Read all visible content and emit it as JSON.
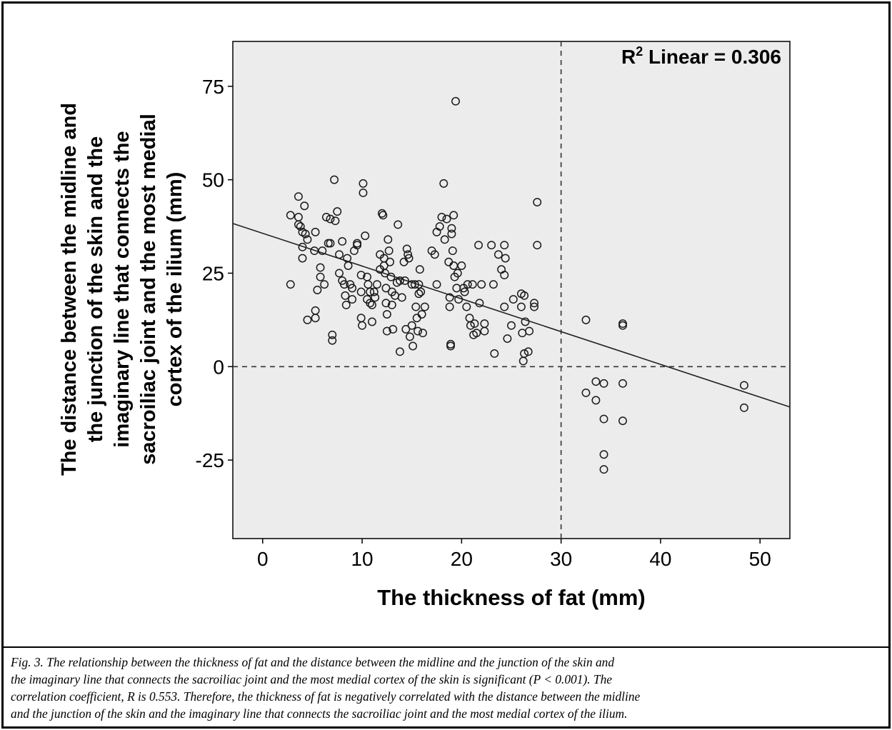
{
  "chart_data": {
    "type": "scatter",
    "xlabel": "The thickness of fat (mm)",
    "ylabel": "The distance between the midline and the junction of the skin and the imaginary line that connects the sacroiliac joint and the most medial cortex of the ilium (mm)",
    "ylabel_lines": [
      "The distance between the midline and",
      "the junction of the skin and the",
      "imaginary line that connects the",
      "sacroiliac joint and the most medial",
      "cortex of the ilium (mm)"
    ],
    "xlim": [
      -3,
      53
    ],
    "ylim": [
      -46,
      87
    ],
    "xticks": [
      0,
      10,
      20,
      30,
      40,
      50
    ],
    "yticks": [
      75,
      50,
      25,
      0,
      -25
    ],
    "annotation": {
      "prefix": "R",
      "sup": "2",
      "suffix": " Linear = 0.306"
    },
    "fit_line": {
      "x": [
        -3,
        53
      ],
      "y": [
        38.3,
        -10.8
      ]
    },
    "reference_lines": {
      "x": 30,
      "y": 0
    },
    "background": "#ececec",
    "points": [
      [
        2.8,
        40.5
      ],
      [
        2.8,
        22
      ],
      [
        3.6,
        45.5
      ],
      [
        3.6,
        38
      ],
      [
        3.8,
        37.5
      ],
      [
        3.6,
        40
      ],
      [
        4,
        36
      ],
      [
        4.2,
        43
      ],
      [
        4,
        32
      ],
      [
        4,
        29
      ],
      [
        4.3,
        35.5
      ],
      [
        4.5,
        34
      ],
      [
        4.5,
        12.5
      ],
      [
        5.2,
        31
      ],
      [
        5.3,
        36
      ],
      [
        5.3,
        15
      ],
      [
        5.3,
        13
      ],
      [
        5.5,
        20.5
      ],
      [
        5.8,
        26.5
      ],
      [
        5.8,
        24
      ],
      [
        6,
        31
      ],
      [
        6.2,
        22
      ],
      [
        6.4,
        40
      ],
      [
        6.6,
        33
      ],
      [
        6.8,
        39.5
      ],
      [
        6.8,
        33
      ],
      [
        7,
        8.5
      ],
      [
        7,
        7
      ],
      [
        7.2,
        50
      ],
      [
        7.3,
        39
      ],
      [
        7.5,
        41.5
      ],
      [
        7.7,
        30
      ],
      [
        7.7,
        25
      ],
      [
        8,
        33.5
      ],
      [
        8,
        23
      ],
      [
        8.2,
        22
      ],
      [
        8.3,
        19
      ],
      [
        8.4,
        16.5
      ],
      [
        8.5,
        29
      ],
      [
        8.6,
        27
      ],
      [
        8.8,
        22
      ],
      [
        9,
        21
      ],
      [
        9,
        18
      ],
      [
        9.2,
        31
      ],
      [
        9.5,
        33
      ],
      [
        9.5,
        32.5
      ],
      [
        9.9,
        24.5
      ],
      [
        9.9,
        20
      ],
      [
        9.9,
        13
      ],
      [
        10,
        11
      ],
      [
        10.1,
        49
      ],
      [
        10.1,
        46.5
      ],
      [
        10.3,
        35
      ],
      [
        10.5,
        24
      ],
      [
        10.5,
        18
      ],
      [
        10.6,
        22
      ],
      [
        10.8,
        20
      ],
      [
        10.8,
        17
      ],
      [
        11,
        16.5
      ],
      [
        11,
        12
      ],
      [
        11.2,
        20
      ],
      [
        11.3,
        18.5
      ],
      [
        11.5,
        22
      ],
      [
        11.8,
        30
      ],
      [
        11.8,
        26
      ],
      [
        12,
        41
      ],
      [
        12.1,
        40.5
      ],
      [
        12.2,
        29
      ],
      [
        12.2,
        27
      ],
      [
        12.3,
        25
      ],
      [
        12.4,
        21
      ],
      [
        12.4,
        17
      ],
      [
        12.5,
        14
      ],
      [
        12.5,
        9.5
      ],
      [
        12.6,
        34
      ],
      [
        12.7,
        31
      ],
      [
        12.8,
        28
      ],
      [
        12.9,
        24
      ],
      [
        13,
        20
      ],
      [
        13,
        16.5
      ],
      [
        13.1,
        10
      ],
      [
        13.3,
        19
      ],
      [
        13.5,
        22.5
      ],
      [
        13.6,
        38
      ],
      [
        13.8,
        23
      ],
      [
        13.8,
        4
      ],
      [
        14,
        18.5
      ],
      [
        14.2,
        28
      ],
      [
        14.3,
        23
      ],
      [
        14.4,
        10
      ],
      [
        14.5,
        31.5
      ],
      [
        14.6,
        30
      ],
      [
        14.7,
        29
      ],
      [
        14.8,
        8
      ],
      [
        15,
        22
      ],
      [
        15,
        11
      ],
      [
        15.1,
        5.5
      ],
      [
        15.3,
        22
      ],
      [
        15.4,
        16
      ],
      [
        15.5,
        13
      ],
      [
        15.6,
        9.5
      ],
      [
        15.7,
        22
      ],
      [
        15.7,
        19.5
      ],
      [
        15.8,
        26
      ],
      [
        15.9,
        20
      ],
      [
        16,
        14
      ],
      [
        16.1,
        9
      ],
      [
        16.3,
        16
      ],
      [
        17,
        31
      ],
      [
        17.3,
        30
      ],
      [
        17.5,
        36
      ],
      [
        17.5,
        22
      ],
      [
        17.8,
        37.5
      ],
      [
        18,
        40
      ],
      [
        18.2,
        49
      ],
      [
        18.3,
        34
      ],
      [
        18.5,
        39.5
      ],
      [
        18.7,
        28
      ],
      [
        18.8,
        18.5
      ],
      [
        18.8,
        16
      ],
      [
        18.9,
        6
      ],
      [
        18.9,
        5.5
      ],
      [
        19,
        37
      ],
      [
        19,
        35.5
      ],
      [
        19.1,
        31
      ],
      [
        19.2,
        40.5
      ],
      [
        19.2,
        27
      ],
      [
        19.3,
        24
      ],
      [
        19.4,
        71
      ],
      [
        19.5,
        21
      ],
      [
        19.6,
        25
      ],
      [
        19.7,
        18
      ],
      [
        20,
        27
      ],
      [
        20.2,
        21
      ],
      [
        20.3,
        20
      ],
      [
        20.5,
        16
      ],
      [
        20.6,
        22
      ],
      [
        20.8,
        13
      ],
      [
        20.9,
        11
      ],
      [
        21.1,
        22
      ],
      [
        21.2,
        8.5
      ],
      [
        21.3,
        11.5
      ],
      [
        21.5,
        9
      ],
      [
        21.7,
        32.5
      ],
      [
        21.8,
        17
      ],
      [
        22,
        22
      ],
      [
        22.3,
        11.5
      ],
      [
        22.3,
        9.5
      ],
      [
        23,
        32.5
      ],
      [
        23.2,
        22
      ],
      [
        23.3,
        3.5
      ],
      [
        23.7,
        30
      ],
      [
        24,
        26
      ],
      [
        24.3,
        32.5
      ],
      [
        24.3,
        24.5
      ],
      [
        24.3,
        16
      ],
      [
        24.4,
        29
      ],
      [
        24.6,
        7.5
      ],
      [
        25,
        11
      ],
      [
        25.2,
        18
      ],
      [
        26,
        19.5
      ],
      [
        26,
        16
      ],
      [
        26.1,
        9
      ],
      [
        26.2,
        1.5
      ],
      [
        26.3,
        3.5
      ],
      [
        26.4,
        12
      ],
      [
        26.7,
        4
      ],
      [
        26.8,
        9.5
      ],
      [
        26.3,
        19
      ],
      [
        27.3,
        17
      ],
      [
        27.3,
        16
      ],
      [
        27.6,
        44
      ],
      [
        27.6,
        32.5
      ],
      [
        32.5,
        12.5
      ],
      [
        32.5,
        -7
      ],
      [
        33.5,
        -4
      ],
      [
        33.5,
        -9
      ],
      [
        34.3,
        -4.5
      ],
      [
        34.3,
        -14
      ],
      [
        34.3,
        -23.5
      ],
      [
        34.3,
        -27.5
      ],
      [
        36.2,
        11.5
      ],
      [
        36.2,
        11
      ],
      [
        36.2,
        -4.5
      ],
      [
        36.2,
        -14.5
      ],
      [
        48.4,
        -5
      ],
      [
        48.4,
        -11
      ]
    ]
  },
  "caption": {
    "lines": [
      "Fig. 3. The relationship between the thickness of fat and the distance between the midline and the junction of the skin and",
      "the imaginary line that connects the sacroiliac joint and the most medial cortex of the skin is significant (P < 0.001). The",
      "correlation coefficient, R is 0.553. Therefore, the thickness of fat is negatively correlated with the distance between the midline",
      "and the junction of the skin and the imaginary line that connects the sacroiliac joint and the most medial cortex of the ilium."
    ]
  }
}
